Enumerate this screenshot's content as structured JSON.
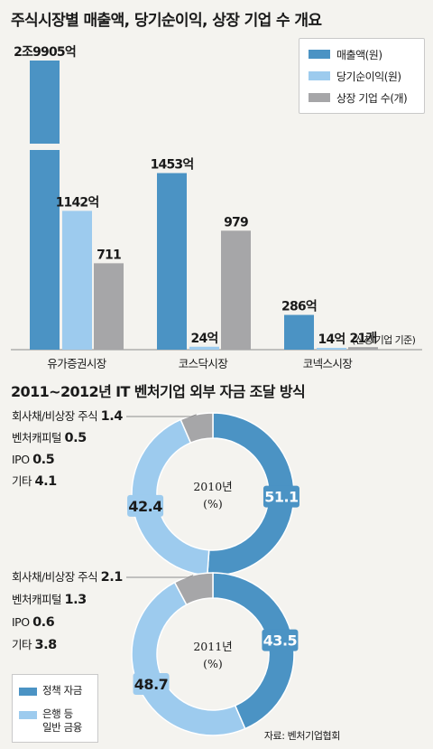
{
  "title": "주식시장별 매출액, 당기순이익, 상장 기업 수 개요",
  "colors": {
    "revenue": "#4b93c4",
    "net_income": "#9dcbee",
    "listed_count": "#a6a6a8",
    "policy_fund": "#4b93c4",
    "bank_finance": "#9dcbee",
    "other_gray": "#a6a6a8"
  },
  "legend": {
    "revenue": "매출액(원)",
    "net_income": "당기순이익(원)",
    "listed_count": "상장 기업 수(개)"
  },
  "chart_data": [
    {
      "type": "bar",
      "title": "주식시장별 매출액, 당기순이익, 상장 기업 수 개요",
      "categories": [
        "유가증권시장",
        "코스닥시장",
        "코넥스시장"
      ],
      "series": [
        {
          "name": "매출액(원)",
          "values": [
            29905,
            1453,
            286
          ],
          "labels": [
            "2조9905억",
            "1453억",
            "286억"
          ],
          "axis_break": [
            true,
            false,
            false
          ]
        },
        {
          "name": "당기순이익(원)",
          "values": [
            1142,
            24,
            14
          ],
          "labels": [
            "1142억",
            "24억",
            "14억"
          ]
        },
        {
          "name": "상장 기업 수(개)",
          "values": [
            711,
            979,
            21
          ],
          "labels": [
            "711",
            "979",
            "21개"
          ]
        }
      ],
      "annotation": "(신청 기업 기준)"
    },
    {
      "type": "pie",
      "title": "2011~2012년 IT 벤처기업 외부 자금 조달 방식",
      "center_label": "2010년",
      "unit": "(%)",
      "slices": [
        {
          "name": "정책 자금",
          "value": 51.1
        },
        {
          "name": "은행 등 일반 금융",
          "value": 42.4
        },
        {
          "name": "회사채/비상장 주식",
          "value": 1.4
        },
        {
          "name": "벤처캐피털",
          "value": 0.5
        },
        {
          "name": "IPO",
          "value": 0.5
        },
        {
          "name": "기타",
          "value": 4.1
        }
      ]
    },
    {
      "type": "pie",
      "center_label": "2011년",
      "unit": "(%)",
      "slices": [
        {
          "name": "정책 자금",
          "value": 43.5
        },
        {
          "name": "은행 등 일반 금융",
          "value": 48.7
        },
        {
          "name": "회사채/비상장 주식",
          "value": 2.1
        },
        {
          "name": "벤처캐피털",
          "value": 1.3
        },
        {
          "name": "IPO",
          "value": 0.6
        },
        {
          "name": "기타",
          "value": 3.8
        }
      ]
    }
  ],
  "ring_labels": [
    [
      {
        "name": "회사채/비상장 주식",
        "value": "1.4"
      },
      {
        "name": "벤처캐피털",
        "value": "0.5"
      },
      {
        "name": "IPO",
        "value": "0.5"
      },
      {
        "name": "기타",
        "value": "4.1"
      }
    ],
    [
      {
        "name": "회사채/비상장 주식",
        "value": "2.1"
      },
      {
        "name": "벤처캐피털",
        "value": "1.3"
      },
      {
        "name": "IPO",
        "value": "0.6"
      },
      {
        "name": "기타",
        "value": "3.8"
      }
    ]
  ],
  "bottom_legend": {
    "policy_fund": "정책 자금",
    "bank_finance_line1": "은행 등",
    "bank_finance_line2": "일반 금융"
  },
  "source": "자료: 벤처기업협회"
}
